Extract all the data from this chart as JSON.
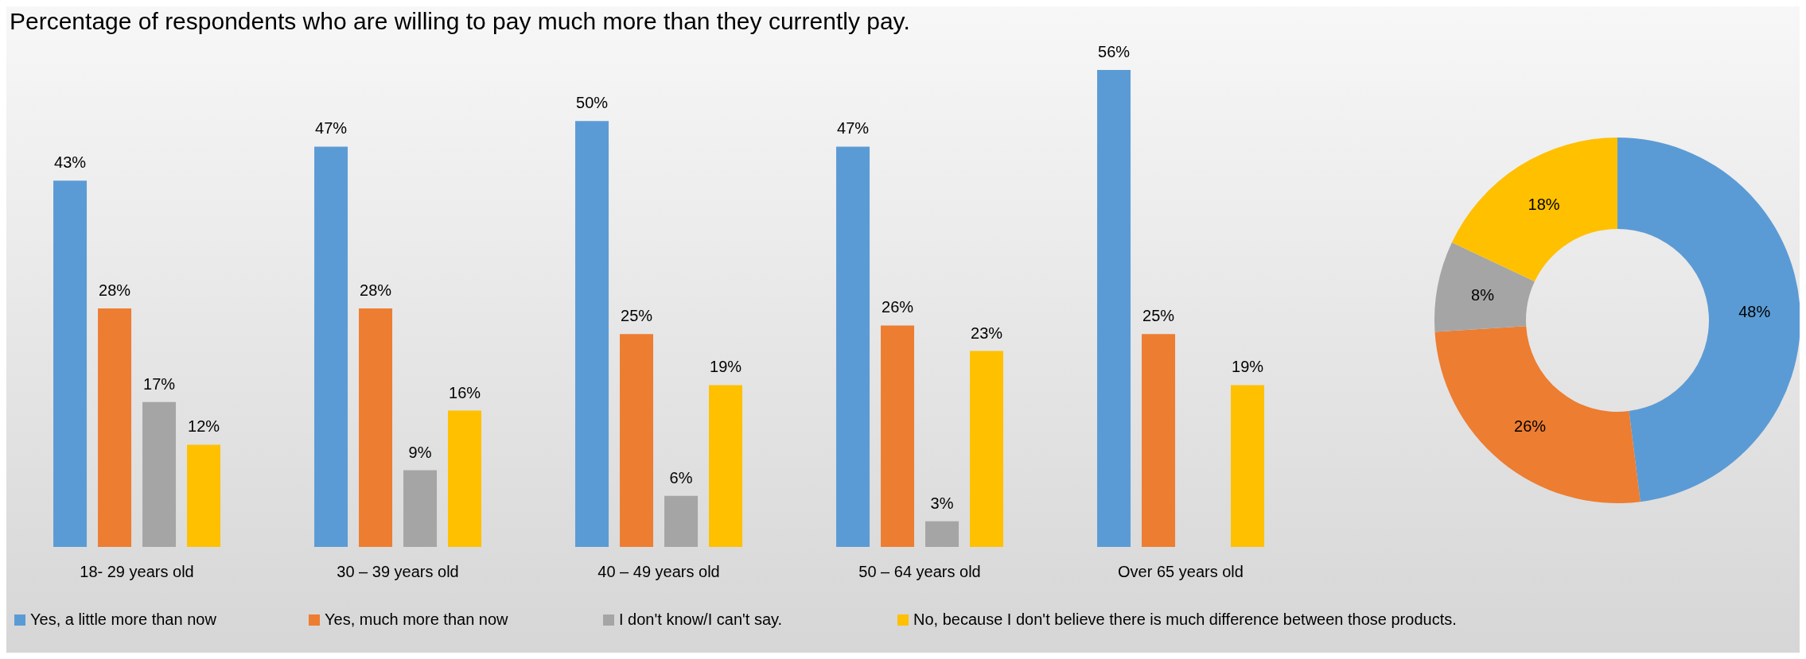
{
  "chart_data": [
    {
      "type": "bar",
      "title": "Percentage of respondents who are willing to pay much more than they currently pay.",
      "categories": [
        "18- 29 years old",
        "30 – 39 years old",
        "40 – 49 years old",
        "50 – 64 years old",
        "Over 65 years old"
      ],
      "series": [
        {
          "name": "Yes, a little more than now",
          "color": "#5b9bd5",
          "values": [
            43,
            47,
            50,
            47,
            56
          ],
          "value_labels": [
            "43%",
            "47%",
            "50%",
            "47%",
            "56%"
          ]
        },
        {
          "name": "Yes, much more than now",
          "color": "#ed7d31",
          "values": [
            28,
            28,
            25,
            26,
            25
          ],
          "value_labels": [
            "28%",
            "28%",
            "25%",
            "26%",
            "25%"
          ]
        },
        {
          "name": "I don't know/I can't say.",
          "color": "#a5a5a5",
          "values": [
            17,
            9,
            6,
            3,
            null
          ],
          "value_labels": [
            "17%",
            "9%",
            "6%",
            "3%",
            null
          ]
        },
        {
          "name": "No, because I don't believe there is much difference between those products.",
          "color": "#ffc000",
          "values": [
            12,
            16,
            19,
            23,
            19
          ],
          "value_labels": [
            "12%",
            "16%",
            "19%",
            "23%",
            "19%"
          ]
        }
      ],
      "legend": "bottom",
      "tick_labels": "x",
      "grid": false
    },
    {
      "type": "donut",
      "categories": [
        null,
        null,
        null,
        null
      ],
      "values": [
        48,
        26,
        8,
        18
      ],
      "colors": [
        "#5b9bd5",
        "#ed7d31",
        "#a5a5a5",
        "#ffc000"
      ],
      "value_labels": [
        "48%",
        "26%",
        "8%",
        "18%"
      ],
      "legend": false
    }
  ]
}
